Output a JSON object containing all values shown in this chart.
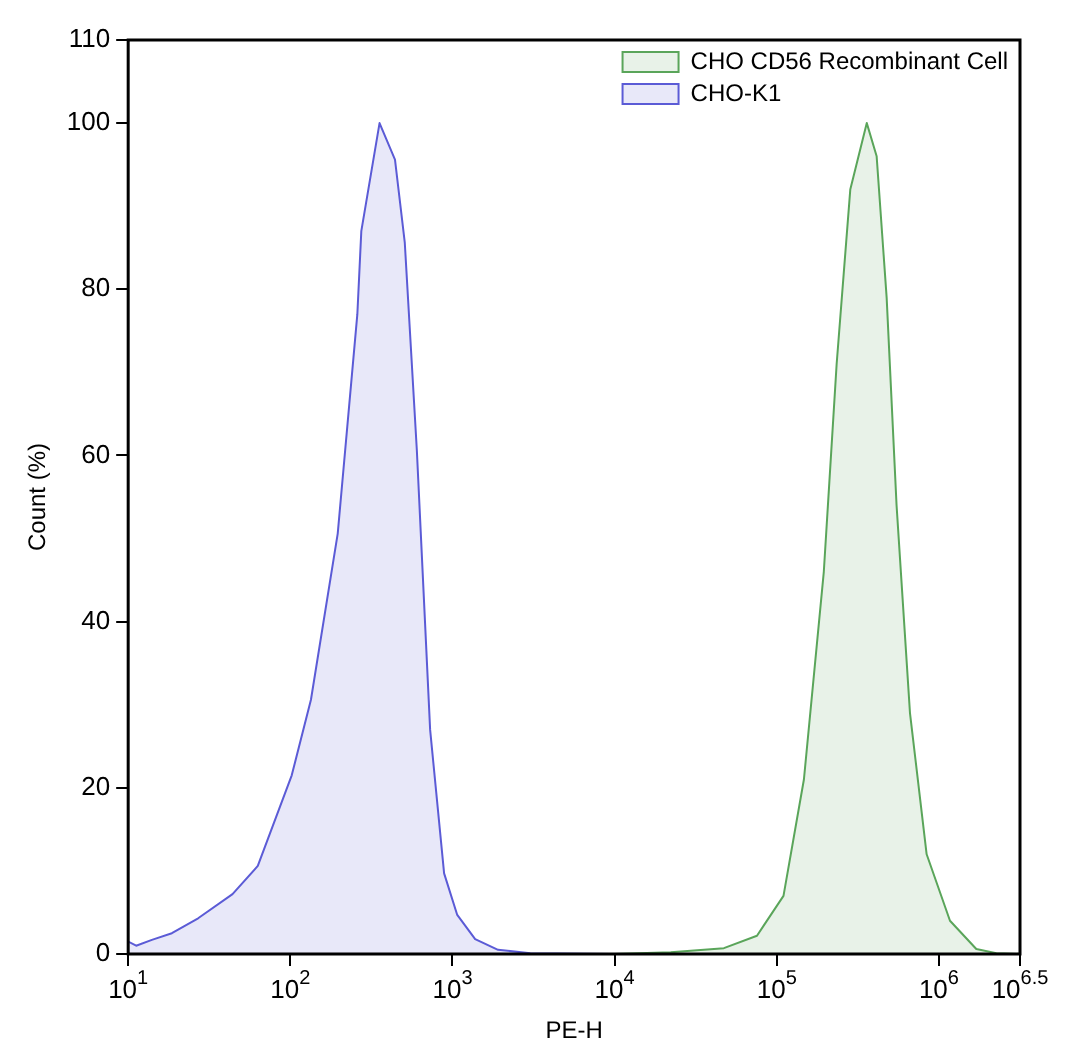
{
  "chart_data": {
    "type": "area",
    "xlabel": "PE-H",
    "ylabel": "Count (%)",
    "log": "x",
    "grid": false,
    "legend": "top right",
    "xlim": [
      10,
      3162278
    ],
    "xticks": [
      {
        "value": 10,
        "label": "10$^{1}$"
      },
      {
        "value": 100,
        "label": "10$^{2}$"
      },
      {
        "value": 1000,
        "label": "10$^{3}$"
      },
      {
        "value": 10000,
        "label": "10$^{4}$"
      },
      {
        "value": 100000,
        "label": "10$^{5}$"
      },
      {
        "value": 1000000,
        "label": "10$^{6}$"
      },
      {
        "value": 3162278,
        "label": "10$^{6.5}$"
      }
    ],
    "ylim": [
      0,
      110
    ],
    "yticks": [
      0,
      20,
      40,
      60,
      80,
      100,
      110
    ],
    "series": [
      {
        "name": "CHO CD56 Recombinant Cell",
        "color": "#5aa55a",
        "x": [
          10000,
          22200,
          47200,
          75500,
          110000,
          147000,
          195000,
          234000,
          284000,
          359000,
          413000,
          476000,
          548000,
          663000,
          840000,
          1170000,
          1700000,
          2260000,
          3162278
        ],
        "values": [
          0,
          0.2,
          0.7,
          2.2,
          7,
          21,
          46,
          71,
          92,
          100,
          96,
          79,
          54,
          29,
          12,
          4,
          0.6,
          0.1,
          0
        ]
      },
      {
        "name": "CHO-K1",
        "color": "#5b5bd6",
        "x": [
          10,
          11.2,
          14,
          18.6,
          27,
          44,
          63,
          102,
          134,
          196,
          259,
          274,
          355,
          442,
          508,
          603,
          728,
          888,
          1070,
          1380,
          1910,
          3020,
          9550
        ],
        "values": [
          1.5,
          1,
          1.7,
          2.5,
          4.3,
          7.2,
          10.6,
          21.5,
          30.6,
          50.6,
          77,
          87,
          100,
          95.6,
          85.6,
          60.6,
          27,
          9.7,
          4.7,
          1.8,
          0.5,
          0.1,
          0
        ]
      }
    ]
  }
}
